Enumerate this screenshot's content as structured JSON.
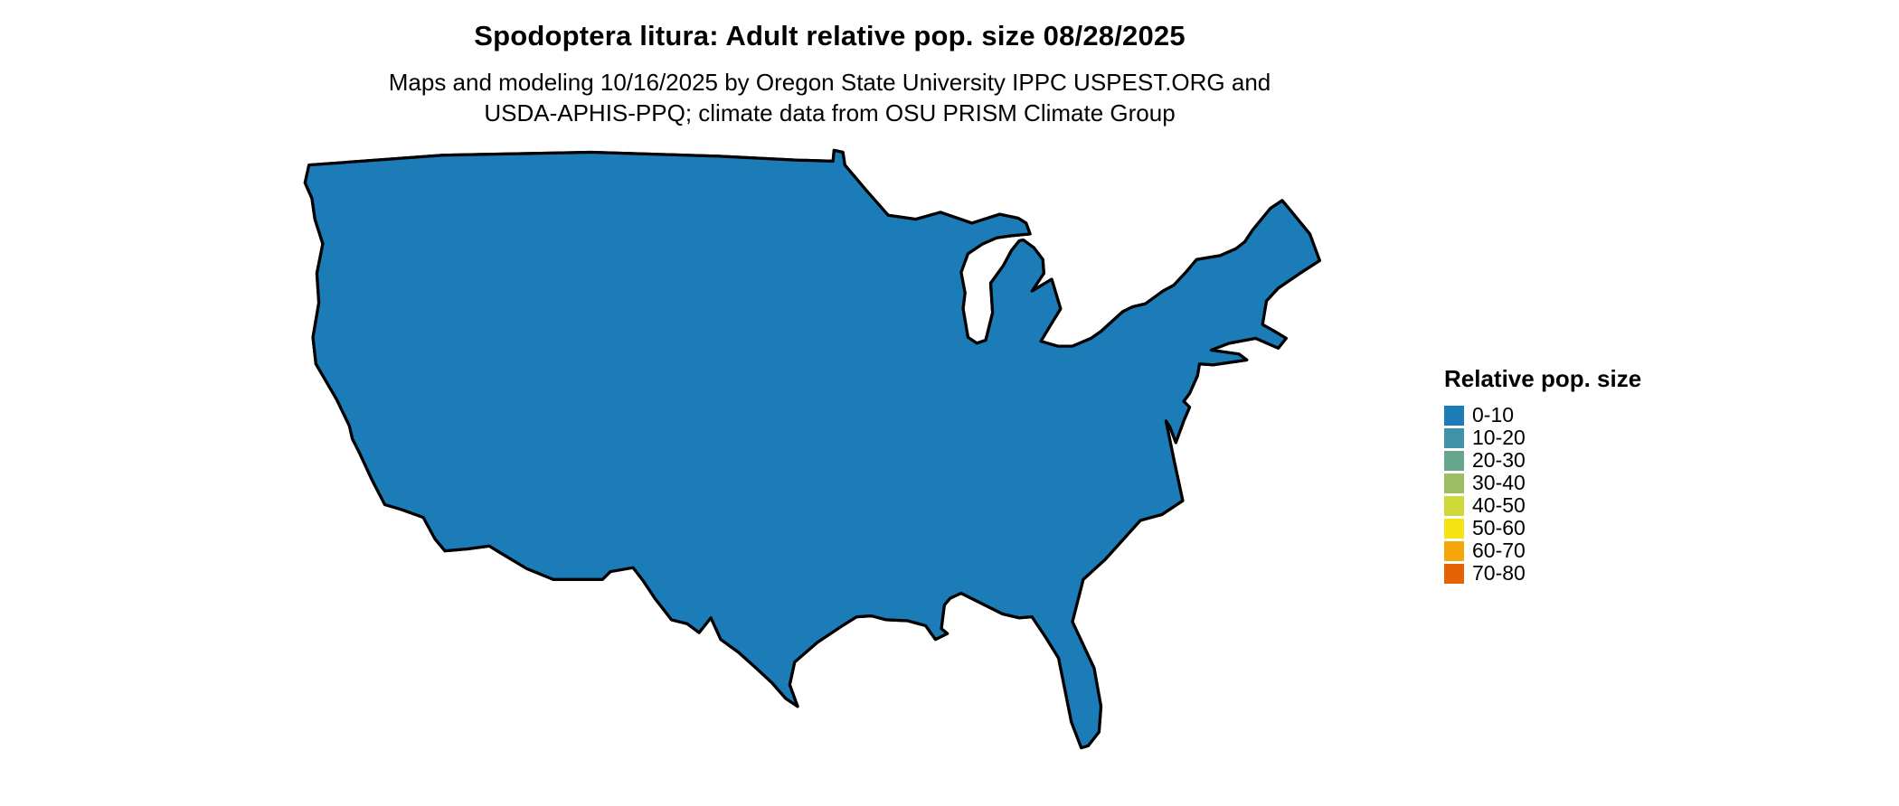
{
  "header": {
    "title": "Spodoptera litura: Adult relative pop. size 08/28/2025",
    "subtitle_line1": "Maps and modeling 10/16/2025 by Oregon State University IPPC USPEST.ORG and",
    "subtitle_line2": "USDA-APHIS-PPQ; climate data from OSU PRISM Climate Group"
  },
  "legend": {
    "title": "Relative pop. size",
    "items": [
      {
        "label": "0-10",
        "color": "#1c7cb8"
      },
      {
        "label": "10-20",
        "color": "#3f93a8"
      },
      {
        "label": "20-30",
        "color": "#67a68c"
      },
      {
        "label": "30-40",
        "color": "#9cbf63"
      },
      {
        "label": "40-50",
        "color": "#cfd937"
      },
      {
        "label": "50-60",
        "color": "#f6e313"
      },
      {
        "label": "60-70",
        "color": "#f6a50a"
      },
      {
        "label": "70-80",
        "color": "#e76105"
      }
    ]
  },
  "map": {
    "region": "Continental United States",
    "base_color": "#1c7cb8",
    "state_border_color": "#000000",
    "background_color": "#ffffff"
  }
}
